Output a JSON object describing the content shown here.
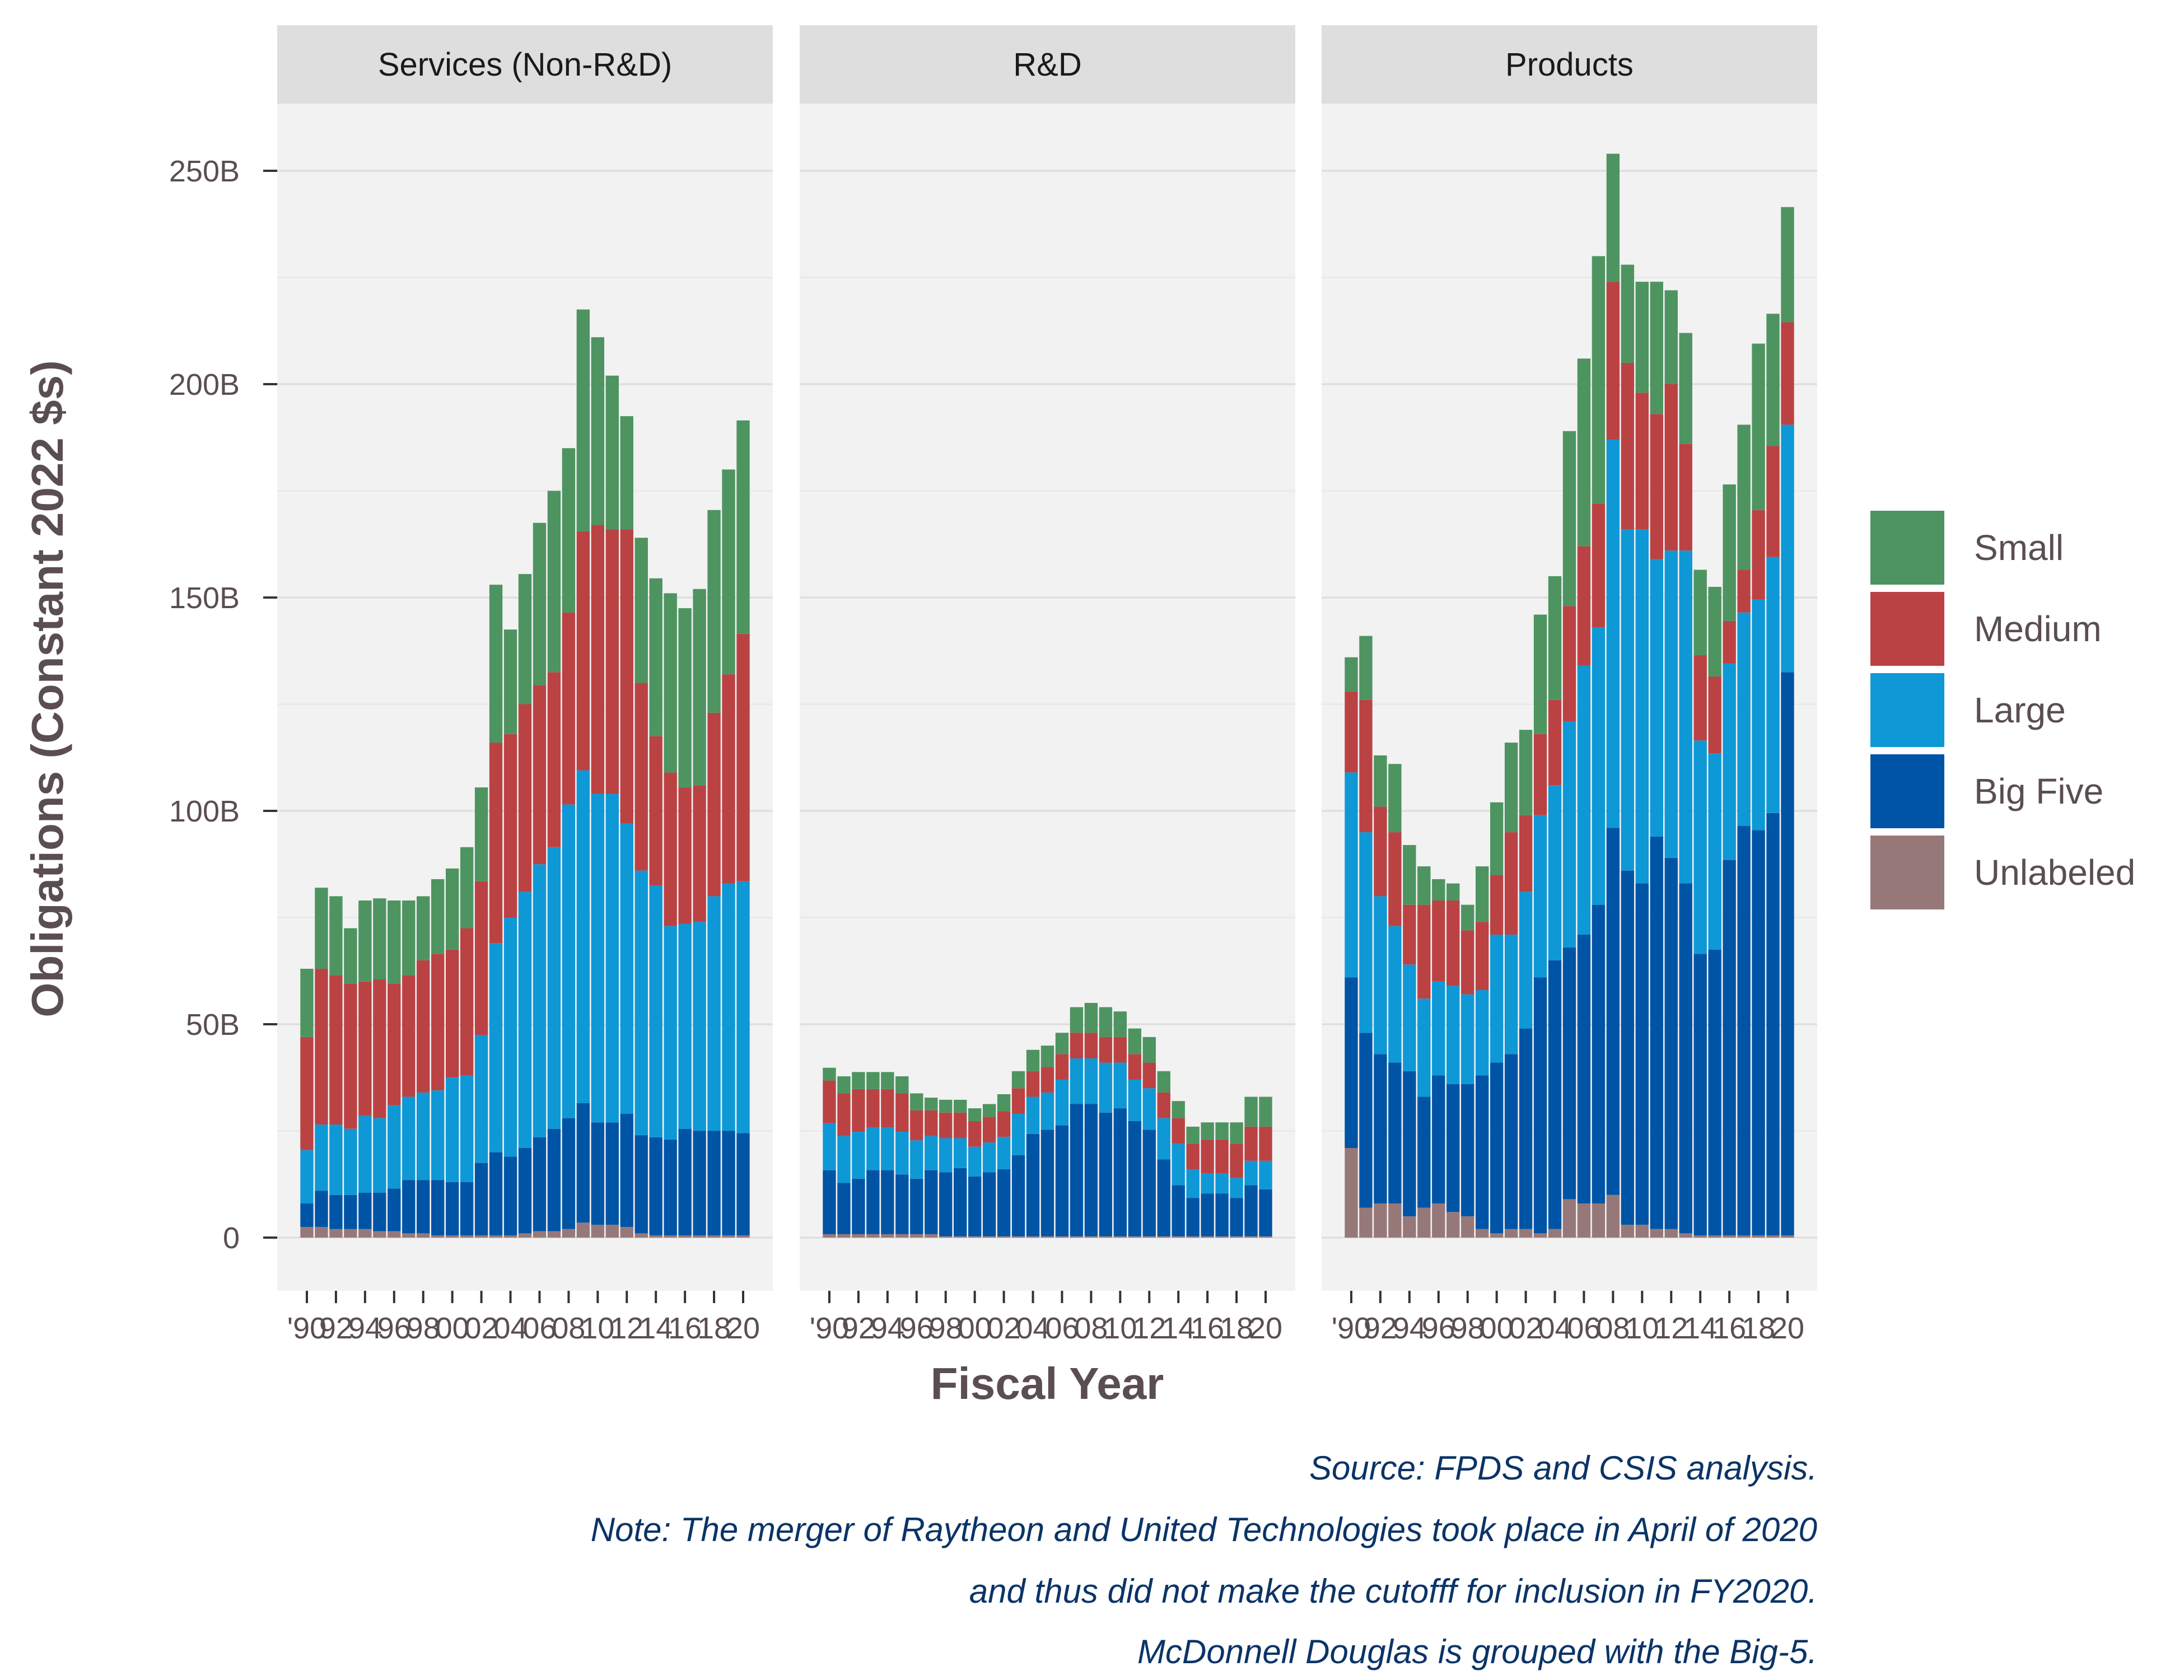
{
  "chart_data": {
    "type": "bar",
    "stacked": true,
    "xlabel": "Fiscal Year",
    "ylabel": "Obligations (Constant 2022 $s)",
    "ylim": [
      -25,
      268
    ],
    "y_ticks": [
      0,
      50,
      100,
      150,
      200,
      250
    ],
    "y_tick_labels": [
      "0",
      "50B",
      "100B",
      "150B",
      "200B",
      "250B"
    ],
    "x": [
      1990,
      1991,
      1992,
      1993,
      1994,
      1995,
      1996,
      1997,
      1998,
      1999,
      2000,
      2001,
      2002,
      2003,
      2004,
      2005,
      2006,
      2007,
      2008,
      2009,
      2010,
      2011,
      2012,
      2013,
      2014,
      2015,
      2016,
      2017,
      2018,
      2019,
      2020
    ],
    "x_tick_labels": [
      "'90",
      "92",
      "94",
      "96",
      "98",
      "00",
      "02",
      "04",
      "06",
      "08",
      "10",
      "12",
      "14",
      "16",
      "18",
      "20"
    ],
    "x_tick_years": [
      1990,
      1992,
      1994,
      1996,
      1998,
      2000,
      2002,
      2004,
      2006,
      2008,
      2010,
      2012,
      2014,
      2016,
      2018,
      2020
    ],
    "legend": {
      "position": "right",
      "entries": [
        "Small",
        "Medium",
        "Large",
        "Big Five",
        "Unlabeled"
      ]
    },
    "series_order_bottom_to_top": [
      "Unlabeled",
      "Big Five",
      "Large",
      "Medium",
      "Small"
    ],
    "colors": {
      "Unlabeled": "#977879",
      "Big Five": "#0054a5",
      "Large": "#0e98d6",
      "Medium": "#bb4243",
      "Small": "#4e9461"
    },
    "panel_background": "#f2f2f2",
    "strip_background": "#dedede",
    "grid": true,
    "facets": [
      {
        "title": "Services (Non-R&D)",
        "series": [
          {
            "name": "Unlabeled",
            "values": [
              2.5,
              2.5,
              2,
              2,
              2,
              1.5,
              1.5,
              1,
              1,
              0.5,
              0.5,
              0.5,
              0.5,
              0.5,
              0.5,
              1,
              1.5,
              1.5,
              2,
              3.5,
              3,
              3,
              2.5,
              1,
              0.5,
              0.5,
              0.5,
              0.5,
              0.5,
              0.5,
              0.5
            ]
          },
          {
            "name": "Big Five",
            "values": [
              5.5,
              8.5,
              8,
              8,
              8.5,
              9,
              10,
              12.5,
              12.5,
              13,
              12.5,
              12.5,
              17,
              19.5,
              18.5,
              20,
              22,
              24,
              26,
              28,
              24,
              24,
              26.5,
              23,
              23,
              22.5,
              25,
              24.5,
              24.5,
              24.5,
              24
            ]
          },
          {
            "name": "Large",
            "values": [
              12.5,
              15.5,
              16.5,
              15.5,
              18,
              17.5,
              19.5,
              19.5,
              20.5,
              21,
              24.5,
              25,
              30,
              49,
              56,
              60,
              64,
              66,
              73.5,
              78,
              77,
              77,
              68,
              62,
              59,
              50,
              48,
              49,
              55,
              58,
              59
            ]
          },
          {
            "name": "Medium",
            "values": [
              26.5,
              36.5,
              35,
              34,
              31.5,
              32.5,
              28.5,
              28.5,
              31,
              32,
              30,
              34.5,
              36,
              47,
              43,
              44,
              42,
              41,
              45,
              56,
              63,
              62,
              69,
              44,
              35,
              36,
              32,
              32,
              43,
              49,
              58
            ]
          },
          {
            "name": "Small",
            "values": [
              16,
              19,
              18.5,
              13,
              19,
              19,
              19.5,
              17.5,
              15,
              17.5,
              19,
              19,
              22,
              37,
              24.5,
              30.5,
              38,
              42.5,
              38.5,
              52,
              44,
              36,
              26.5,
              34,
              37,
              42,
              42,
              46,
              47.5,
              48,
              50
            ]
          }
        ]
      },
      {
        "title": "R&D",
        "series": [
          {
            "name": "Unlabeled",
            "values": [
              0.8,
              0.8,
              0.8,
              0.8,
              0.8,
              0.8,
              0.8,
              0.8,
              0.3,
              0.3,
              0.3,
              0.3,
              0.3,
              0.3,
              0.3,
              0.3,
              0.3,
              0.3,
              0.3,
              0.3,
              0.3,
              0.3,
              0.3,
              0.3,
              0.3,
              0.3,
              0.3,
              0.3,
              0.3,
              0.3,
              0.3
            ]
          },
          {
            "name": "Big Five",
            "values": [
              15,
              12,
              13,
              15,
              15,
              14,
              13,
              15,
              15,
              16,
              14,
              15,
              15.7,
              19,
              24,
              25,
              26,
              31,
              31,
              29,
              30,
              27,
              25,
              18,
              12,
              9,
              10,
              10,
              9,
              12,
              11
            ]
          },
          {
            "name": "Large",
            "values": [
              11,
              11,
              11,
              10,
              10,
              10,
              9,
              8,
              8,
              7,
              7,
              7,
              7.6,
              9.7,
              8.7,
              8.7,
              10.7,
              10.7,
              10.7,
              11.7,
              10.7,
              9.7,
              9.7,
              9.7,
              9.7,
              6.7,
              4.7,
              4.7,
              4.7,
              5.7,
              6.7
            ]
          },
          {
            "name": "Medium",
            "values": [
              10,
              10,
              10,
              9,
              9,
              9,
              7,
              6,
              6,
              6,
              6,
              6,
              6,
              6,
              6,
              6,
              6,
              6,
              6,
              6,
              6,
              6,
              6,
              6,
              6,
              6,
              8,
              8,
              8,
              8,
              8
            ]
          },
          {
            "name": "Small",
            "values": [
              3,
              4,
              4,
              4,
              4,
              4,
              4,
              3,
              3,
              3,
              3,
              3,
              4,
              4,
              5,
              5,
              5,
              6,
              7,
              7,
              6,
              6,
              6,
              5,
              4,
              4,
              4,
              4,
              5,
              7,
              7
            ]
          }
        ]
      },
      {
        "title": "Products",
        "series": [
          {
            "name": "Unlabeled",
            "values": [
              21,
              7,
              8,
              8,
              5,
              7,
              8,
              6,
              5,
              2,
              1,
              2,
              2,
              1,
              2,
              9,
              8,
              8,
              10,
              3,
              3,
              2,
              2,
              1,
              0.5,
              0.5,
              0.5,
              0.5,
              0.5,
              0.5,
              0.5
            ]
          },
          {
            "name": "Big Five",
            "values": [
              40,
              41,
              35,
              33,
              34,
              26,
              30,
              30,
              31,
              36,
              40,
              41,
              47,
              60,
              63,
              59,
              63,
              70,
              86,
              83,
              80,
              92,
              87,
              82,
              66,
              67,
              88,
              96,
              95,
              99,
              132
            ]
          },
          {
            "name": "Large",
            "values": [
              48,
              47,
              37,
              32,
              25,
              23,
              22,
              23,
              21,
              20,
              30,
              28,
              32,
              38,
              41,
              53,
              63,
              65,
              91,
              80,
              83,
              65,
              72,
              78,
              50,
              46,
              46,
              50,
              54,
              60,
              58
            ]
          },
          {
            "name": "Medium",
            "values": [
              19,
              31,
              21,
              22,
              14,
              22,
              19,
              20,
              15,
              16,
              14,
              24,
              18,
              19,
              20,
              27,
              28,
              29,
              37,
              39,
              32,
              34,
              39,
              25,
              20,
              18,
              10,
              10,
              21,
              26,
              24
            ]
          },
          {
            "name": "Small",
            "values": [
              8,
              15,
              12,
              16,
              14,
              9,
              5,
              4,
              6,
              13,
              17,
              21,
              20,
              28,
              29,
              41,
              44,
              58,
              30,
              23,
              26,
              31,
              22,
              26,
              20,
              21,
              32,
              34,
              39,
              31,
              27
            ]
          }
        ]
      }
    ],
    "caption": [
      "Source: FPDS and CSIS analysis.",
      "Note: The merger of Raytheon and United Technologies took place in April of 2020",
      "and thus did not make the cutofff for inclusion in FY2020.",
      "McDonnell Douglas is grouped with the Big-5."
    ]
  }
}
